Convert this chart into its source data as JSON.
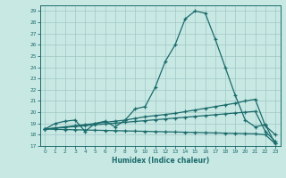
{
  "xlabel": "Humidex (Indice chaleur)",
  "x": [
    0,
    1,
    2,
    3,
    4,
    5,
    6,
    7,
    8,
    9,
    10,
    11,
    12,
    13,
    14,
    15,
    16,
    17,
    18,
    19,
    20,
    21,
    22,
    23
  ],
  "curve1": [
    18.5,
    19.0,
    19.2,
    19.3,
    18.3,
    19.0,
    19.2,
    18.7,
    19.3,
    20.3,
    20.5,
    22.2,
    24.5,
    26.0,
    28.3,
    29.0,
    28.8,
    26.5,
    24.0,
    21.5,
    19.3,
    18.7,
    18.9,
    17.2
  ],
  "curve2": [
    18.5,
    18.6,
    18.7,
    18.8,
    18.9,
    19.0,
    19.1,
    19.2,
    19.3,
    19.45,
    19.6,
    19.7,
    19.8,
    19.9,
    20.05,
    20.2,
    20.35,
    20.5,
    20.65,
    20.8,
    21.0,
    21.15,
    18.8,
    18.0
  ],
  "curve3": [
    18.5,
    18.58,
    18.65,
    18.73,
    18.8,
    18.88,
    18.95,
    19.03,
    19.1,
    19.18,
    19.25,
    19.33,
    19.4,
    19.48,
    19.55,
    19.63,
    19.7,
    19.78,
    19.85,
    19.93,
    20.0,
    20.08,
    18.3,
    17.4
  ],
  "curve4": [
    18.5,
    18.48,
    18.46,
    18.44,
    18.42,
    18.4,
    18.38,
    18.36,
    18.34,
    18.32,
    18.3,
    18.28,
    18.26,
    18.24,
    18.22,
    18.2,
    18.18,
    18.16,
    18.14,
    18.12,
    18.1,
    18.08,
    18.0,
    17.2
  ],
  "ylim": [
    17,
    29.5
  ],
  "yticks": [
    17,
    18,
    19,
    20,
    21,
    22,
    23,
    24,
    25,
    26,
    27,
    28,
    29
  ],
  "xticks": [
    0,
    1,
    2,
    3,
    4,
    5,
    6,
    7,
    8,
    9,
    10,
    11,
    12,
    13,
    14,
    15,
    16,
    17,
    18,
    19,
    20,
    21,
    22,
    23
  ],
  "bg_color": "#c8e8e4",
  "grid_color": "#a0c8c4",
  "line_color": "#1a6b6b",
  "marker": "+"
}
